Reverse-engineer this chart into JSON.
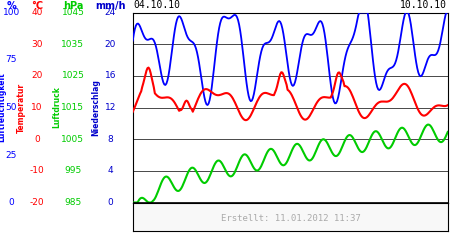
{
  "title_left": "04.10.10",
  "title_right": "10.10.10",
  "footer_text": "Erstellt: 11.01.2012 11:37",
  "bg_color": "#ffffff",
  "color_blue": "#0000ff",
  "color_red": "#ff0000",
  "color_green": "#00cc00",
  "color_darkblue": "#0000cc",
  "footer_color": "#aaaaaa",
  "label_lf": "Luftfeuchtigkeit",
  "label_temp": "Temperatur",
  "label_ld": "Luftdruck",
  "label_ns": "Niederschlag",
  "header_pct": "%",
  "header_celsius": "°C",
  "header_hpa": "hPa",
  "header_mmh": "mm/h",
  "pct_vals": [
    0,
    25,
    50,
    75,
    100
  ],
  "pct_y": [
    0,
    6,
    12,
    18,
    24
  ],
  "temp_vals": [
    "-20",
    "-10",
    "0",
    "10",
    "20",
    "30",
    "40"
  ],
  "temp_y": [
    0,
    4,
    8,
    12,
    16,
    20,
    24
  ],
  "hpa_vals": [
    "985",
    "995",
    "1005",
    "1015",
    "1025",
    "1035",
    "1045"
  ],
  "hpa_y": [
    0,
    4,
    8,
    12,
    16,
    20,
    24
  ],
  "mmh_vals": [
    0,
    4,
    8,
    12,
    16,
    20,
    24
  ],
  "mmh_y": [
    0,
    4,
    8,
    12,
    16,
    20,
    24
  ],
  "n_points": 300,
  "seed": 42
}
